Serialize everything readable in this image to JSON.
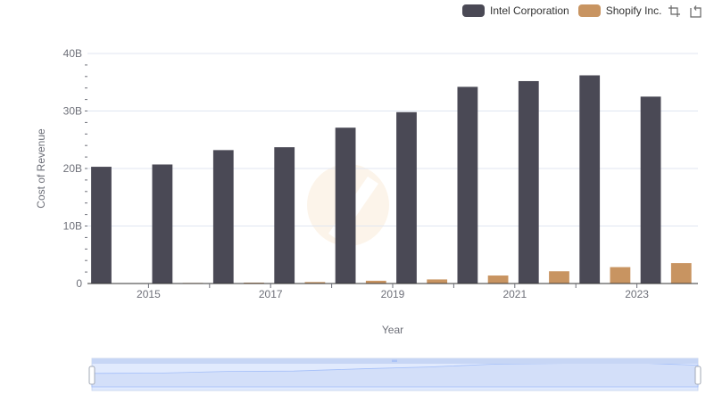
{
  "legend": {
    "items": [
      {
        "label": "Intel Corporation",
        "color": "#4a4955"
      },
      {
        "label": "Shopify Inc.",
        "color": "#c89461"
      }
    ]
  },
  "toolbox": [
    "zoom-icon",
    "restore-icon"
  ],
  "chart_data": {
    "type": "bar",
    "title": "",
    "xlabel": "Year",
    "ylabel": "Cost of Revenue",
    "categories": [
      "2014",
      "2015",
      "2016",
      "2017",
      "2018",
      "2019",
      "2020",
      "2021",
      "2022",
      "2023"
    ],
    "xtick_labels": [
      "2015",
      "2017",
      "2019",
      "2021",
      "2023"
    ],
    "ytick_labels": [
      "0",
      "10B",
      "20B",
      "30B",
      "40B"
    ],
    "ylim": [
      0,
      40000000000
    ],
    "grid": true,
    "legend_position": "top-right",
    "series": [
      {
        "name": "Intel Corporation",
        "color": "#4a4955",
        "values": [
          20300000000,
          20700000000,
          23200000000,
          23700000000,
          27100000000,
          29800000000,
          34200000000,
          35200000000,
          36200000000,
          32500000000
        ]
      },
      {
        "name": "Shopify Inc.",
        "color": "#c89461",
        "values": [
          50000000,
          100000000,
          150000000,
          250000000,
          480000000,
          710000000,
          1390000000,
          2130000000,
          2850000000,
          3550000000
        ]
      }
    ]
  }
}
